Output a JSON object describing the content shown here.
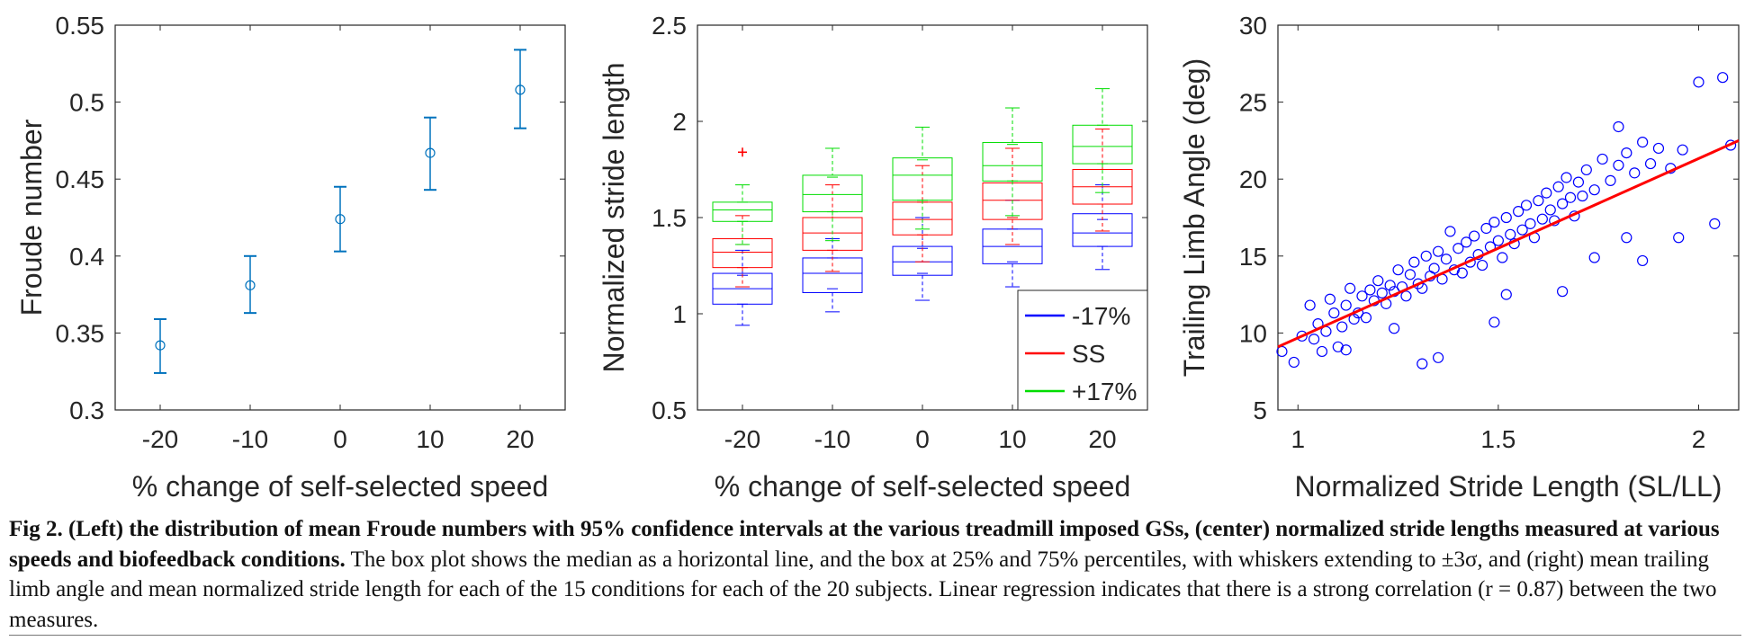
{
  "chart_data": [
    {
      "type": "scatter",
      "panel": "left",
      "xlabel": "% change of self-selected speed",
      "ylabel": "Froude number",
      "xlim": [
        -25,
        25
      ],
      "ylim": [
        0.3,
        0.55
      ],
      "xticks": [
        -20,
        -10,
        0,
        10,
        20
      ],
      "yticks": [
        0.3,
        0.35,
        0.4,
        0.45,
        0.5,
        0.55
      ],
      "ytick_labels": [
        "0.3",
        "0.35",
        "0.4",
        "0.45",
        "0.5",
        "0.55"
      ],
      "x": [
        -20,
        -10,
        0,
        10,
        20
      ],
      "y": [
        0.342,
        0.381,
        0.424,
        0.467,
        0.508
      ],
      "ci_low": [
        0.324,
        0.363,
        0.403,
        0.443,
        0.483
      ],
      "ci_high": [
        0.359,
        0.4,
        0.445,
        0.49,
        0.534
      ],
      "color": "#0072BD",
      "grid": false
    },
    {
      "type": "box",
      "panel": "center",
      "xlabel": "% change of self-selected speed",
      "ylabel": "Normalized stride length",
      "xlim": [
        -25,
        25
      ],
      "ylim": [
        0.5,
        2.5
      ],
      "xticks": [
        -20,
        -10,
        0,
        10,
        20
      ],
      "yticks": [
        0.5,
        1,
        1.5,
        2,
        2.5
      ],
      "ytick_labels": [
        "0.5",
        "1",
        "1.5",
        "2",
        "2.5"
      ],
      "legend_position": "bottom-right",
      "series": [
        {
          "name": "-17%",
          "color": "#0000FF",
          "offset": 0,
          "boxes": [
            {
              "x": -20,
              "q1": 1.05,
              "med": 1.13,
              "q3": 1.21,
              "wlo": 0.94,
              "whi": 1.33,
              "mlo": 1.05,
              "mhi": 1.2
            },
            {
              "x": -10,
              "q1": 1.11,
              "med": 1.21,
              "q3": 1.29,
              "wlo": 1.01,
              "whi": 1.39,
              "mlo": 1.13,
              "mhi": 1.29
            },
            {
              "x": 0,
              "q1": 1.2,
              "med": 1.27,
              "q3": 1.35,
              "wlo": 1.07,
              "whi": 1.5,
              "mlo": 1.21,
              "mhi": 1.34
            },
            {
              "x": 10,
              "q1": 1.26,
              "med": 1.35,
              "q3": 1.44,
              "wlo": 1.14,
              "whi": 1.59,
              "mlo": 1.27,
              "mhi": 1.44
            },
            {
              "x": 20,
              "q1": 1.35,
              "med": 1.42,
              "q3": 1.52,
              "wlo": 1.23,
              "whi": 1.67,
              "mlo": 1.35,
              "mhi": 1.49
            }
          ],
          "outliers": []
        },
        {
          "name": "SS",
          "color": "#FF0000",
          "offset": 0,
          "boxes": [
            {
              "x": -20,
              "q1": 1.24,
              "med": 1.32,
              "q3": 1.39,
              "wlo": 1.14,
              "whi": 1.51,
              "mlo": 1.24,
              "mhi": 1.36
            },
            {
              "x": -10,
              "q1": 1.33,
              "med": 1.42,
              "q3": 1.5,
              "wlo": 1.22,
              "whi": 1.67,
              "mlo": 1.33,
              "mhi": 1.5
            },
            {
              "x": 0,
              "q1": 1.41,
              "med": 1.49,
              "q3": 1.58,
              "wlo": 1.27,
              "whi": 1.77,
              "mlo": 1.41,
              "mhi": 1.58
            },
            {
              "x": 10,
              "q1": 1.49,
              "med": 1.59,
              "q3": 1.68,
              "wlo": 1.36,
              "whi": 1.86,
              "mlo": 1.5,
              "mhi": 1.68
            },
            {
              "x": 20,
              "q1": 1.57,
              "med": 1.66,
              "q3": 1.75,
              "wlo": 1.43,
              "whi": 1.96,
              "mlo": 1.57,
              "mhi": 1.75
            }
          ],
          "outliers": [
            [
              -20,
              1.84
            ]
          ]
        },
        {
          "name": "+17%",
          "color": "#00DD00",
          "offset": 0,
          "boxes": [
            {
              "x": -20,
              "q1": 1.48,
              "med": 1.54,
              "q3": 1.58,
              "wlo": 1.36,
              "whi": 1.67,
              "mlo": 1.48,
              "mhi": 1.58
            },
            {
              "x": -10,
              "q1": 1.53,
              "med": 1.62,
              "q3": 1.72,
              "wlo": 1.38,
              "whi": 1.86,
              "mlo": 1.53,
              "mhi": 1.71
            },
            {
              "x": 0,
              "q1": 1.59,
              "med": 1.72,
              "q3": 1.81,
              "wlo": 1.44,
              "whi": 1.97,
              "mlo": 1.59,
              "mhi": 1.8
            },
            {
              "x": 10,
              "q1": 1.69,
              "med": 1.77,
              "q3": 1.89,
              "wlo": 1.51,
              "whi": 2.07,
              "mlo": 1.69,
              "mhi": 1.88
            },
            {
              "x": 20,
              "q1": 1.78,
              "med": 1.87,
              "q3": 1.98,
              "wlo": 1.63,
              "whi": 2.17,
              "mlo": 1.78,
              "mhi": 1.98
            }
          ],
          "outliers": []
        }
      ]
    },
    {
      "type": "scatter",
      "panel": "right",
      "xlabel": "Normalized Stride Length (SL/LL)",
      "ylabel": "Trailing Limb Angle (deg)",
      "xlim": [
        0.95,
        2.1
      ],
      "ylim": [
        5,
        30
      ],
      "xticks": [
        1,
        1.5,
        2
      ],
      "xtick_labels": [
        "1",
        "1.5",
        "2"
      ],
      "yticks": [
        5,
        10,
        15,
        20,
        25,
        30
      ],
      "ytick_labels": [
        "5",
        "10",
        "15",
        "20",
        "25",
        "30"
      ],
      "marker_color": "#0000FF",
      "fit_color": "#FF0000",
      "fit_line": {
        "x": [
          0.95,
          2.1
        ],
        "y": [
          9.1,
          22.5
        ]
      },
      "points": [
        [
          1.01,
          9.8
        ],
        [
          1.03,
          11.8
        ],
        [
          1.04,
          9.6
        ],
        [
          1.05,
          10.6
        ],
        [
          1.07,
          10.1
        ],
        [
          1.08,
          12.2
        ],
        [
          1.09,
          11.3
        ],
        [
          1.1,
          9.1
        ],
        [
          1.11,
          10.4
        ],
        [
          1.12,
          11.8
        ],
        [
          1.13,
          12.9
        ],
        [
          1.14,
          10.9
        ],
        [
          1.15,
          11.3
        ],
        [
          1.16,
          12.4
        ],
        [
          1.17,
          11.0
        ],
        [
          1.18,
          12.8
        ],
        [
          1.19,
          12.1
        ],
        [
          1.2,
          13.4
        ],
        [
          1.21,
          12.6
        ],
        [
          1.22,
          11.9
        ],
        [
          1.23,
          13.1
        ],
        [
          1.24,
          12.7
        ],
        [
          1.25,
          14.1
        ],
        [
          1.26,
          13.0
        ],
        [
          1.27,
          12.4
        ],
        [
          1.28,
          13.8
        ],
        [
          1.29,
          14.6
        ],
        [
          1.3,
          13.2
        ],
        [
          1.31,
          12.9
        ],
        [
          1.32,
          15.0
        ],
        [
          1.33,
          13.7
        ],
        [
          1.34,
          14.2
        ],
        [
          1.35,
          15.3
        ],
        [
          1.36,
          13.5
        ],
        [
          1.37,
          14.8
        ],
        [
          1.38,
          16.6
        ],
        [
          1.39,
          14.1
        ],
        [
          1.4,
          15.5
        ],
        [
          1.41,
          13.9
        ],
        [
          1.42,
          15.9
        ],
        [
          1.43,
          14.6
        ],
        [
          1.44,
          16.3
        ],
        [
          1.45,
          15.1
        ],
        [
          1.46,
          14.4
        ],
        [
          1.47,
          16.8
        ],
        [
          1.48,
          15.6
        ],
        [
          1.49,
          17.2
        ],
        [
          1.5,
          16.0
        ],
        [
          1.51,
          14.9
        ],
        [
          1.52,
          17.5
        ],
        [
          1.53,
          16.4
        ],
        [
          1.54,
          15.8
        ],
        [
          1.55,
          17.9
        ],
        [
          1.56,
          16.7
        ],
        [
          1.57,
          18.3
        ],
        [
          1.58,
          17.1
        ],
        [
          1.59,
          16.2
        ],
        [
          1.6,
          18.6
        ],
        [
          1.61,
          17.4
        ],
        [
          1.62,
          19.1
        ],
        [
          1.63,
          18.0
        ],
        [
          1.64,
          17.3
        ],
        [
          1.65,
          19.5
        ],
        [
          1.66,
          18.4
        ],
        [
          1.67,
          20.1
        ],
        [
          1.68,
          18.8
        ],
        [
          1.69,
          17.6
        ],
        [
          1.7,
          19.8
        ],
        [
          1.71,
          18.9
        ],
        [
          1.72,
          20.6
        ],
        [
          1.74,
          19.3
        ],
        [
          1.76,
          21.3
        ],
        [
          1.78,
          19.9
        ],
        [
          1.8,
          20.9
        ],
        [
          1.82,
          21.7
        ],
        [
          1.84,
          20.4
        ],
        [
          1.86,
          22.4
        ],
        [
          1.88,
          21.0
        ],
        [
          1.9,
          22.0
        ],
        [
          1.93,
          20.7
        ],
        [
          1.96,
          21.9
        ],
        [
          2.0,
          26.3
        ],
        [
          2.06,
          26.6
        ],
        [
          2.08,
          22.2
        ],
        [
          2.04,
          17.1
        ],
        [
          1.95,
          16.2
        ],
        [
          1.86,
          14.7
        ],
        [
          1.82,
          16.2
        ],
        [
          1.74,
          14.9
        ],
        [
          1.66,
          12.7
        ],
        [
          1.52,
          12.5
        ],
        [
          1.49,
          10.7
        ],
        [
          1.35,
          8.4
        ],
        [
          1.31,
          8.0
        ],
        [
          1.24,
          10.3
        ],
        [
          1.12,
          8.9
        ],
        [
          1.06,
          8.8
        ],
        [
          0.96,
          8.8
        ],
        [
          0.99,
          8.1
        ],
        [
          1.8,
          23.4
        ]
      ]
    }
  ],
  "caption": {
    "bold": "Fig 2.  (Left) the distribution of mean Froude numbers with 95% confidence intervals at the various treadmill imposed GSs, (center) normalized stride lengths measured at various speeds and biofeedback conditions.",
    "normal": " The box plot shows the median as a horizontal line, and the box at 25% and 75% percentiles, with whiskers extending to ±3σ, and (right) mean trailing limb angle and mean normalized stride length for each of the 15 conditions for each of the 20 subjects. Linear regression indicates that there is a strong correlation (r = 0.87) between the two measures."
  }
}
